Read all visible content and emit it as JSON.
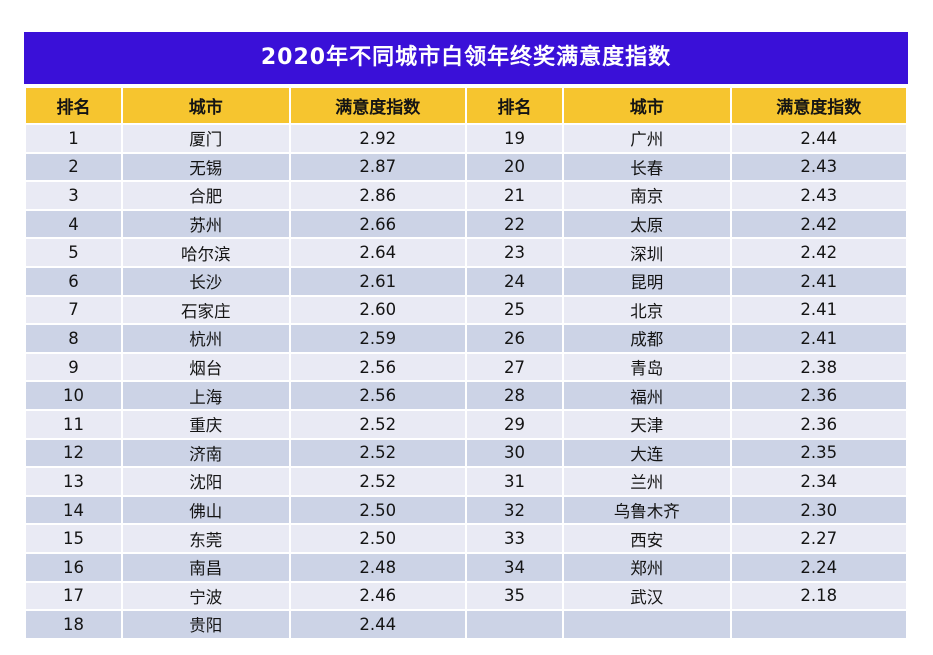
{
  "title": "2020年不同城市白领年终奖满意度指数",
  "colors": {
    "title_bg": "#3a10d8",
    "title_text": "#ffffff",
    "header_bg": "#f6c52f",
    "row_light": "#e9eaf4",
    "row_dark": "#ccd3e6",
    "grid_line": "#ffffff",
    "body_text": "#141414"
  },
  "chart_data": {
    "type": "table",
    "title": "2020年不同城市白领年终奖满意度指数",
    "columns": [
      "排名",
      "城市",
      "满意度指数",
      "排名",
      "城市",
      "满意度指数"
    ],
    "rows": [
      [
        "1",
        "厦门",
        "2.92",
        "19",
        "广州",
        "2.44"
      ],
      [
        "2",
        "无锡",
        "2.87",
        "20",
        "长春",
        "2.43"
      ],
      [
        "3",
        "合肥",
        "2.86",
        "21",
        "南京",
        "2.43"
      ],
      [
        "4",
        "苏州",
        "2.66",
        "22",
        "太原",
        "2.42"
      ],
      [
        "5",
        "哈尔滨",
        "2.64",
        "23",
        "深圳",
        "2.42"
      ],
      [
        "6",
        "长沙",
        "2.61",
        "24",
        "昆明",
        "2.41"
      ],
      [
        "7",
        "石家庄",
        "2.60",
        "25",
        "北京",
        "2.41"
      ],
      [
        "8",
        "杭州",
        "2.59",
        "26",
        "成都",
        "2.41"
      ],
      [
        "9",
        "烟台",
        "2.56",
        "27",
        "青岛",
        "2.38"
      ],
      [
        "10",
        "上海",
        "2.56",
        "28",
        "福州",
        "2.36"
      ],
      [
        "11",
        "重庆",
        "2.52",
        "29",
        "天津",
        "2.36"
      ],
      [
        "12",
        "济南",
        "2.52",
        "30",
        "大连",
        "2.35"
      ],
      [
        "13",
        "沈阳",
        "2.52",
        "31",
        "兰州",
        "2.34"
      ],
      [
        "14",
        "佛山",
        "2.50",
        "32",
        "乌鲁木齐",
        "2.30"
      ],
      [
        "15",
        "东莞",
        "2.50",
        "33",
        "西安",
        "2.27"
      ],
      [
        "16",
        "南昌",
        "2.48",
        "34",
        "郑州",
        "2.24"
      ],
      [
        "17",
        "宁波",
        "2.46",
        "35",
        "武汉",
        "2.18"
      ],
      [
        "18",
        "贵阳",
        "2.44",
        "",
        "",
        ""
      ]
    ]
  }
}
